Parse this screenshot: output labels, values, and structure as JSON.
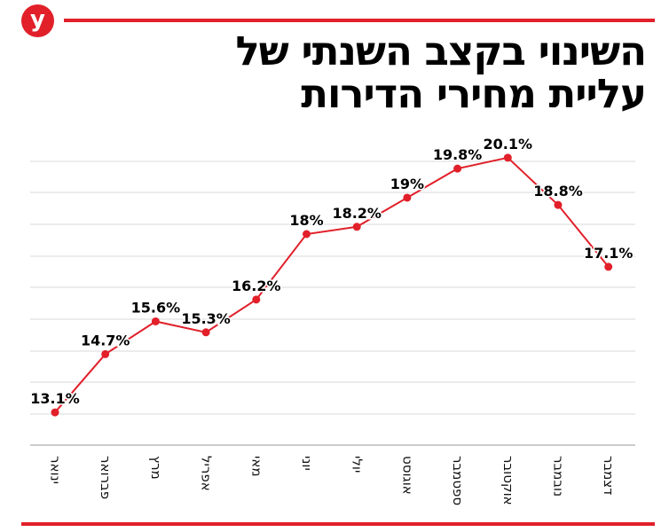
{
  "brand": {
    "logo_letter": "y",
    "accent": "#e1202a"
  },
  "title": "השינוי בקצב השנתי של עליית מחירי הדירות",
  "chart_data": {
    "type": "line",
    "categories": [
      "ינואר",
      "פברואר",
      "מרץ",
      "אפריל",
      "מאי",
      "יוני",
      "יולי",
      "אוגוסט",
      "ספטמבר",
      "אוקטובר",
      "נובמבר",
      "דצמבר"
    ],
    "values": [
      13.1,
      14.7,
      15.6,
      15.3,
      16.2,
      18,
      18.2,
      19,
      19.8,
      20.1,
      18.8,
      17.1
    ],
    "labels": [
      "13.1%",
      "14.7%",
      "15.6%",
      "15.3%",
      "16.2%",
      "18%",
      "18.2%",
      "19%",
      "19.8%",
      "20.1%",
      "18.8%",
      "17.1%"
    ],
    "ylim": [
      12.2,
      20.9
    ],
    "grid": true,
    "line_color": "#e1202a",
    "point_color": "#e1202a"
  }
}
